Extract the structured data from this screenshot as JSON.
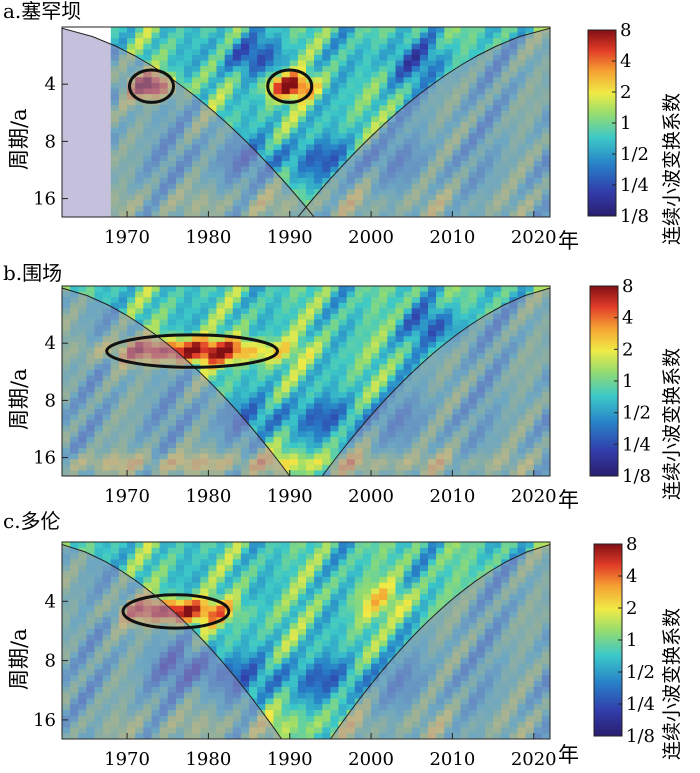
{
  "chart_data": [
    {
      "type": "heatmap",
      "title": "a.塞罕坝",
      "ylabel": "周期/a",
      "x_unit_label": "年",
      "xlim": [
        1962,
        2022
      ],
      "x_ticks": [
        "1970",
        "1980",
        "1990",
        "2000",
        "2010",
        "2020"
      ],
      "ylim_period": [
        2,
        20
      ],
      "y_scale": "log2",
      "y_ticks": [
        "4",
        "8",
        "16"
      ],
      "data_start_year": 1968,
      "colorbar_label": "连续小波变换系数",
      "colorbar_ticks": [
        "8",
        "4",
        "2",
        "1",
        "1/2",
        "1/4",
        "1/8"
      ],
      "cone_apex_year": 1995,
      "significant_regions": [
        {
          "year_center": 1973,
          "period_center": 4.1
        },
        {
          "year_center": 1990,
          "period_center": 4.1
        }
      ]
    },
    {
      "type": "heatmap",
      "title": "b.围场",
      "ylabel": "周期/a",
      "x_unit_label": "年",
      "xlim": [
        1962,
        2022
      ],
      "x_ticks": [
        "1970",
        "1980",
        "1990",
        "2000",
        "2010",
        "2020"
      ],
      "ylim_period": [
        2,
        20
      ],
      "y_scale": "log2",
      "y_ticks": [
        "4",
        "8",
        "16"
      ],
      "colorbar_label": "连续小波变换系数",
      "colorbar_ticks": [
        "8",
        "4",
        "2",
        "1",
        "1/2",
        "1/4",
        "1/8"
      ],
      "cone_apex_year": 1992,
      "significant_regions": [
        {
          "year_center": 1978,
          "period_center": 4.4,
          "year_span": [
            1968,
            1989
          ]
        }
      ]
    },
    {
      "type": "heatmap",
      "title": "c.多伦",
      "ylabel": "周期/a",
      "x_unit_label": "年",
      "xlim": [
        1962,
        2022
      ],
      "x_ticks": [
        "1970",
        "1980",
        "1990",
        "2000",
        "2010",
        "2020"
      ],
      "ylim_period": [
        2,
        20
      ],
      "y_scale": "log2",
      "y_ticks": [
        "4",
        "8",
        "16"
      ],
      "colorbar_label": "连续小波变换系数",
      "colorbar_ticks": [
        "8",
        "4",
        "2",
        "1",
        "1/2",
        "1/4",
        "1/8"
      ],
      "cone_apex_year": 1991,
      "significant_regions": [
        {
          "year_center": 1976,
          "period_center": 4.5,
          "year_span": [
            1969,
            1982
          ]
        }
      ]
    }
  ]
}
